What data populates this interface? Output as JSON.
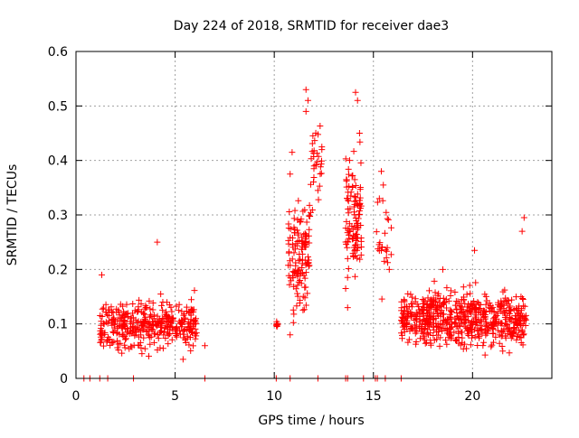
{
  "chart_data": {
    "type": "scatter",
    "title": "Day 224 of 2018, SRMTID for receiver dae3",
    "xlabel": "GPS time / hours",
    "ylabel": "SRMTID / TECUs",
    "xlim": [
      0,
      24
    ],
    "ylim": [
      0,
      0.6
    ],
    "x_ticks": [
      0,
      5,
      10,
      15,
      20
    ],
    "x_tick_labels": [
      "0",
      "5",
      "10",
      "15",
      "20"
    ],
    "y_ticks": [
      0,
      0.1,
      0.2,
      0.3,
      0.4,
      0.5,
      0.6
    ],
    "y_tick_labels": [
      "0",
      "0.1",
      "0.2",
      "0.3",
      "0.4",
      "0.5",
      "0.6"
    ],
    "grid": true,
    "marker": "+",
    "colors": {
      "points": "#ff0000",
      "grid": "#a0a0a0",
      "axes": "#000000"
    },
    "clusters": [
      {
        "x_range": [
          1.2,
          6.1
        ],
        "center": 0.1,
        "spread": 0.035,
        "count": 380
      },
      {
        "x_range": [
          10.1,
          10.2
        ],
        "center": 0.1,
        "spread": 0.005,
        "count": 8
      },
      {
        "x_range": [
          10.7,
          11.8
        ],
        "center": 0.22,
        "spread": 0.09,
        "count": 130
      },
      {
        "x_range": [
          11.8,
          12.4
        ],
        "center": 0.38,
        "spread": 0.07,
        "count": 30
      },
      {
        "x_range": [
          13.6,
          14.4
        ],
        "center": 0.29,
        "spread": 0.08,
        "count": 110
      },
      {
        "x_range": [
          15.1,
          15.9
        ],
        "center": 0.26,
        "spread": 0.06,
        "count": 22
      },
      {
        "x_range": [
          16.4,
          22.7
        ],
        "center": 0.11,
        "spread": 0.04,
        "count": 640
      }
    ],
    "highlight_points": [
      {
        "x": 4.1,
        "y": 0.25
      },
      {
        "x": 1.3,
        "y": 0.19
      },
      {
        "x": 11.6,
        "y": 0.53
      },
      {
        "x": 11.7,
        "y": 0.51
      },
      {
        "x": 11.6,
        "y": 0.49
      },
      {
        "x": 14.1,
        "y": 0.525
      },
      {
        "x": 14.2,
        "y": 0.51
      },
      {
        "x": 14.3,
        "y": 0.45
      },
      {
        "x": 12.4,
        "y": 0.425
      },
      {
        "x": 12.4,
        "y": 0.42
      },
      {
        "x": 15.4,
        "y": 0.38
      },
      {
        "x": 15.5,
        "y": 0.355
      },
      {
        "x": 15.3,
        "y": 0.33
      },
      {
        "x": 13.8,
        "y": 0.4
      },
      {
        "x": 13.7,
        "y": 0.13
      },
      {
        "x": 13.6,
        "y": 0.165
      },
      {
        "x": 15.7,
        "y": 0.24
      },
      {
        "x": 15.8,
        "y": 0.2
      },
      {
        "x": 12.2,
        "y": 0.345
      },
      {
        "x": 10.8,
        "y": 0.08
      },
      {
        "x": 10.9,
        "y": 0.415
      },
      {
        "x": 10.8,
        "y": 0.375
      },
      {
        "x": 22.6,
        "y": 0.295
      },
      {
        "x": 22.5,
        "y": 0.27
      },
      {
        "x": 20.1,
        "y": 0.235
      },
      {
        "x": 18.5,
        "y": 0.2
      },
      {
        "x": 6.5,
        "y": 0.06
      },
      {
        "x": 5.4,
        "y": 0.035
      }
    ],
    "zero_points_x": [
      0.4,
      0.7,
      1.2,
      1.6,
      2.9,
      6.5,
      10.1,
      10.8,
      12.2,
      13.6,
      13.7,
      14.5,
      15.1,
      15.2,
      15.6,
      16.4
    ]
  }
}
